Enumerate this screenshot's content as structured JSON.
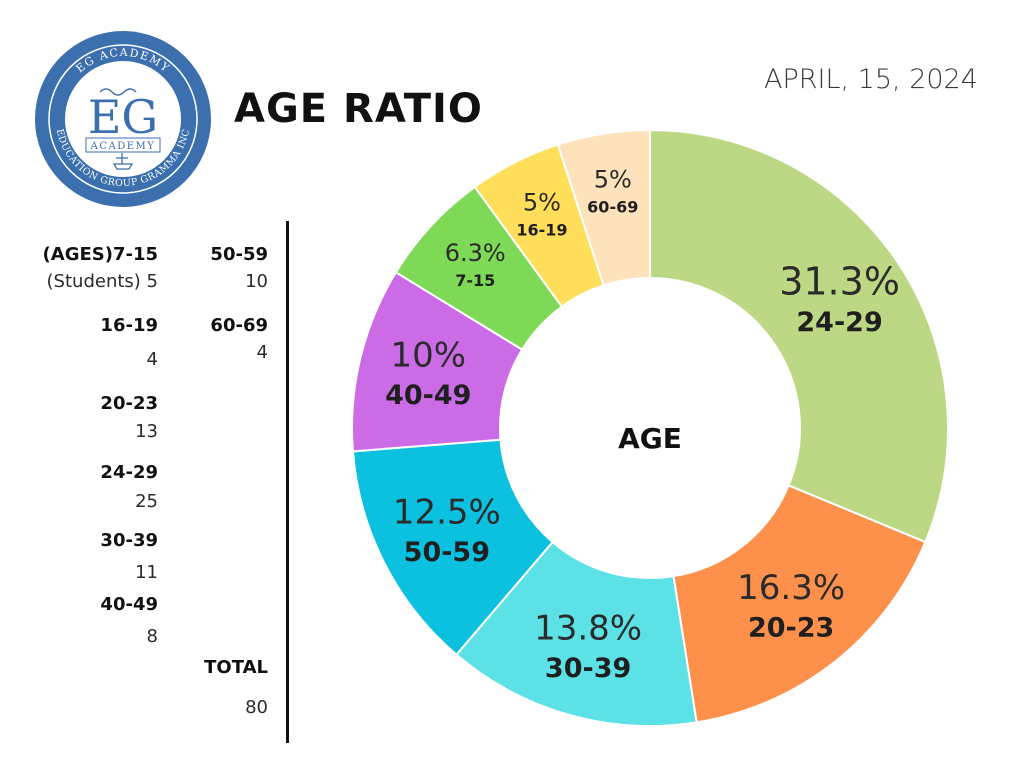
{
  "logo": {
    "monogram": "EG",
    "arc_top": "EG ACADEMY",
    "arc_bottom": "EDUCATION GROUP GRAMMA INC",
    "banner": "ACADEMY",
    "ring_color": "#3b6fae",
    "inner_color": "#ffffff"
  },
  "header": {
    "title": "AGE RATIO",
    "date": "APRIL, 15, 2024"
  },
  "table": {
    "col1": [
      {
        "label": "(AGES)7-15",
        "value": "(Students) 5"
      },
      {
        "label": "16-19",
        "value": "4"
      },
      {
        "label": "20-23",
        "value": "13"
      },
      {
        "label": "24-29",
        "value": "25"
      },
      {
        "label": "30-39",
        "value": "11"
      },
      {
        "label": "40-49",
        "value": "8"
      }
    ],
    "col2": [
      {
        "label": "50-59",
        "value": "10"
      },
      {
        "label": "60-69",
        "value": "4"
      }
    ],
    "total_label": "TOTAL",
    "total_value": "80"
  },
  "chart_data": {
    "type": "pie",
    "center_label": "AGE",
    "slices": [
      {
        "category": "24-29",
        "value": 25,
        "percent": "31.3%",
        "color": "#bdd884"
      },
      {
        "category": "20-23",
        "value": 13,
        "percent": "16.3%",
        "color": "#fd914c"
      },
      {
        "category": "30-39",
        "value": 11,
        "percent": "13.8%",
        "color": "#5ce1e6"
      },
      {
        "category": "50-59",
        "value": 10,
        "percent": "12.5%",
        "color": "#0cc0df"
      },
      {
        "category": "40-49",
        "value": 8,
        "percent": "10%",
        "color": "#cb6ce6"
      },
      {
        "category": "7-15",
        "value": 5,
        "percent": "6.3%",
        "color": "#7ed957"
      },
      {
        "category": "16-19",
        "value": 4,
        "percent": "5%",
        "color": "#ffde59"
      },
      {
        "category": "60-69",
        "value": 4,
        "percent": "5%",
        "color": "#fee2bb"
      }
    ]
  }
}
